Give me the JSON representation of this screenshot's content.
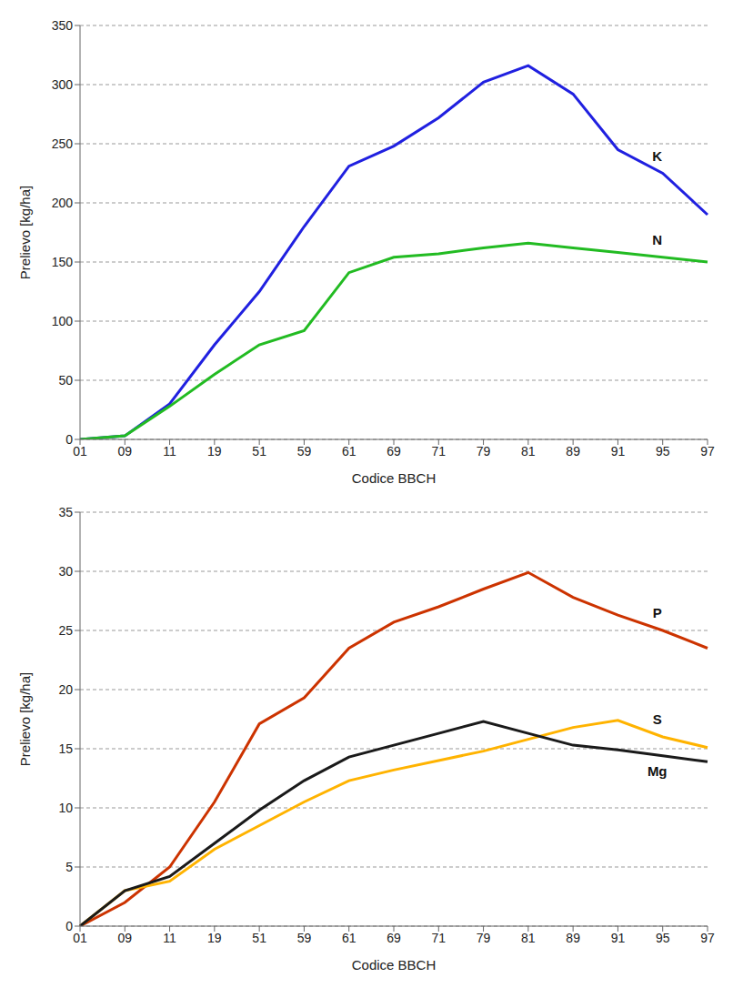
{
  "chart_data": [
    {
      "type": "line",
      "x_label": "Codice BBCH",
      "y_label": "Prelievo [kg/ha]",
      "categories": [
        "01",
        "09",
        "11",
        "19",
        "51",
        "59",
        "61",
        "69",
        "71",
        "79",
        "81",
        "89",
        "91",
        "95",
        "97"
      ],
      "ylim": [
        0,
        350
      ],
      "yticks": [
        0,
        50,
        100,
        150,
        200,
        250,
        300,
        350
      ],
      "grid": true,
      "series": [
        {
          "name": "K",
          "color": "#2020e0",
          "values": [
            0,
            3,
            30,
            80,
            125,
            180,
            231,
            248,
            272,
            302,
            316,
            292,
            245,
            225,
            190
          ]
        },
        {
          "name": "N",
          "color": "#22bb22",
          "values": [
            0,
            3,
            28,
            55,
            80,
            92,
            141,
            154,
            157,
            162,
            166,
            162,
            158,
            154,
            150
          ]
        }
      ]
    },
    {
      "type": "line",
      "x_label": "Codice BBCH",
      "y_label": "Prelievo [kg/ha]",
      "categories": [
        "01",
        "09",
        "11",
        "19",
        "51",
        "59",
        "61",
        "69",
        "71",
        "79",
        "81",
        "89",
        "91",
        "95",
        "97"
      ],
      "ylim": [
        0,
        35
      ],
      "yticks": [
        0,
        5,
        10,
        15,
        20,
        25,
        30,
        35
      ],
      "grid": true,
      "series": [
        {
          "name": "P",
          "color": "#cc3300",
          "values": [
            0,
            2,
            5,
            10.5,
            17.1,
            19.3,
            23.5,
            25.7,
            27,
            28.5,
            29.9,
            27.8,
            26.3,
            25,
            23.5
          ]
        },
        {
          "name": "S",
          "color": "#ffb300",
          "values": [
            0,
            3,
            3.8,
            6.5,
            8.5,
            10.5,
            12.3,
            13.2,
            14,
            14.8,
            15.8,
            16.8,
            17.4,
            16,
            15.1
          ]
        },
        {
          "name": "Mg",
          "color": "#1a1a1a",
          "values": [
            0,
            3,
            4.2,
            7,
            9.8,
            12.3,
            14.3,
            15.3,
            16.3,
            17.3,
            16.3,
            15.3,
            14.9,
            14.4,
            13.9
          ]
        }
      ]
    }
  ]
}
